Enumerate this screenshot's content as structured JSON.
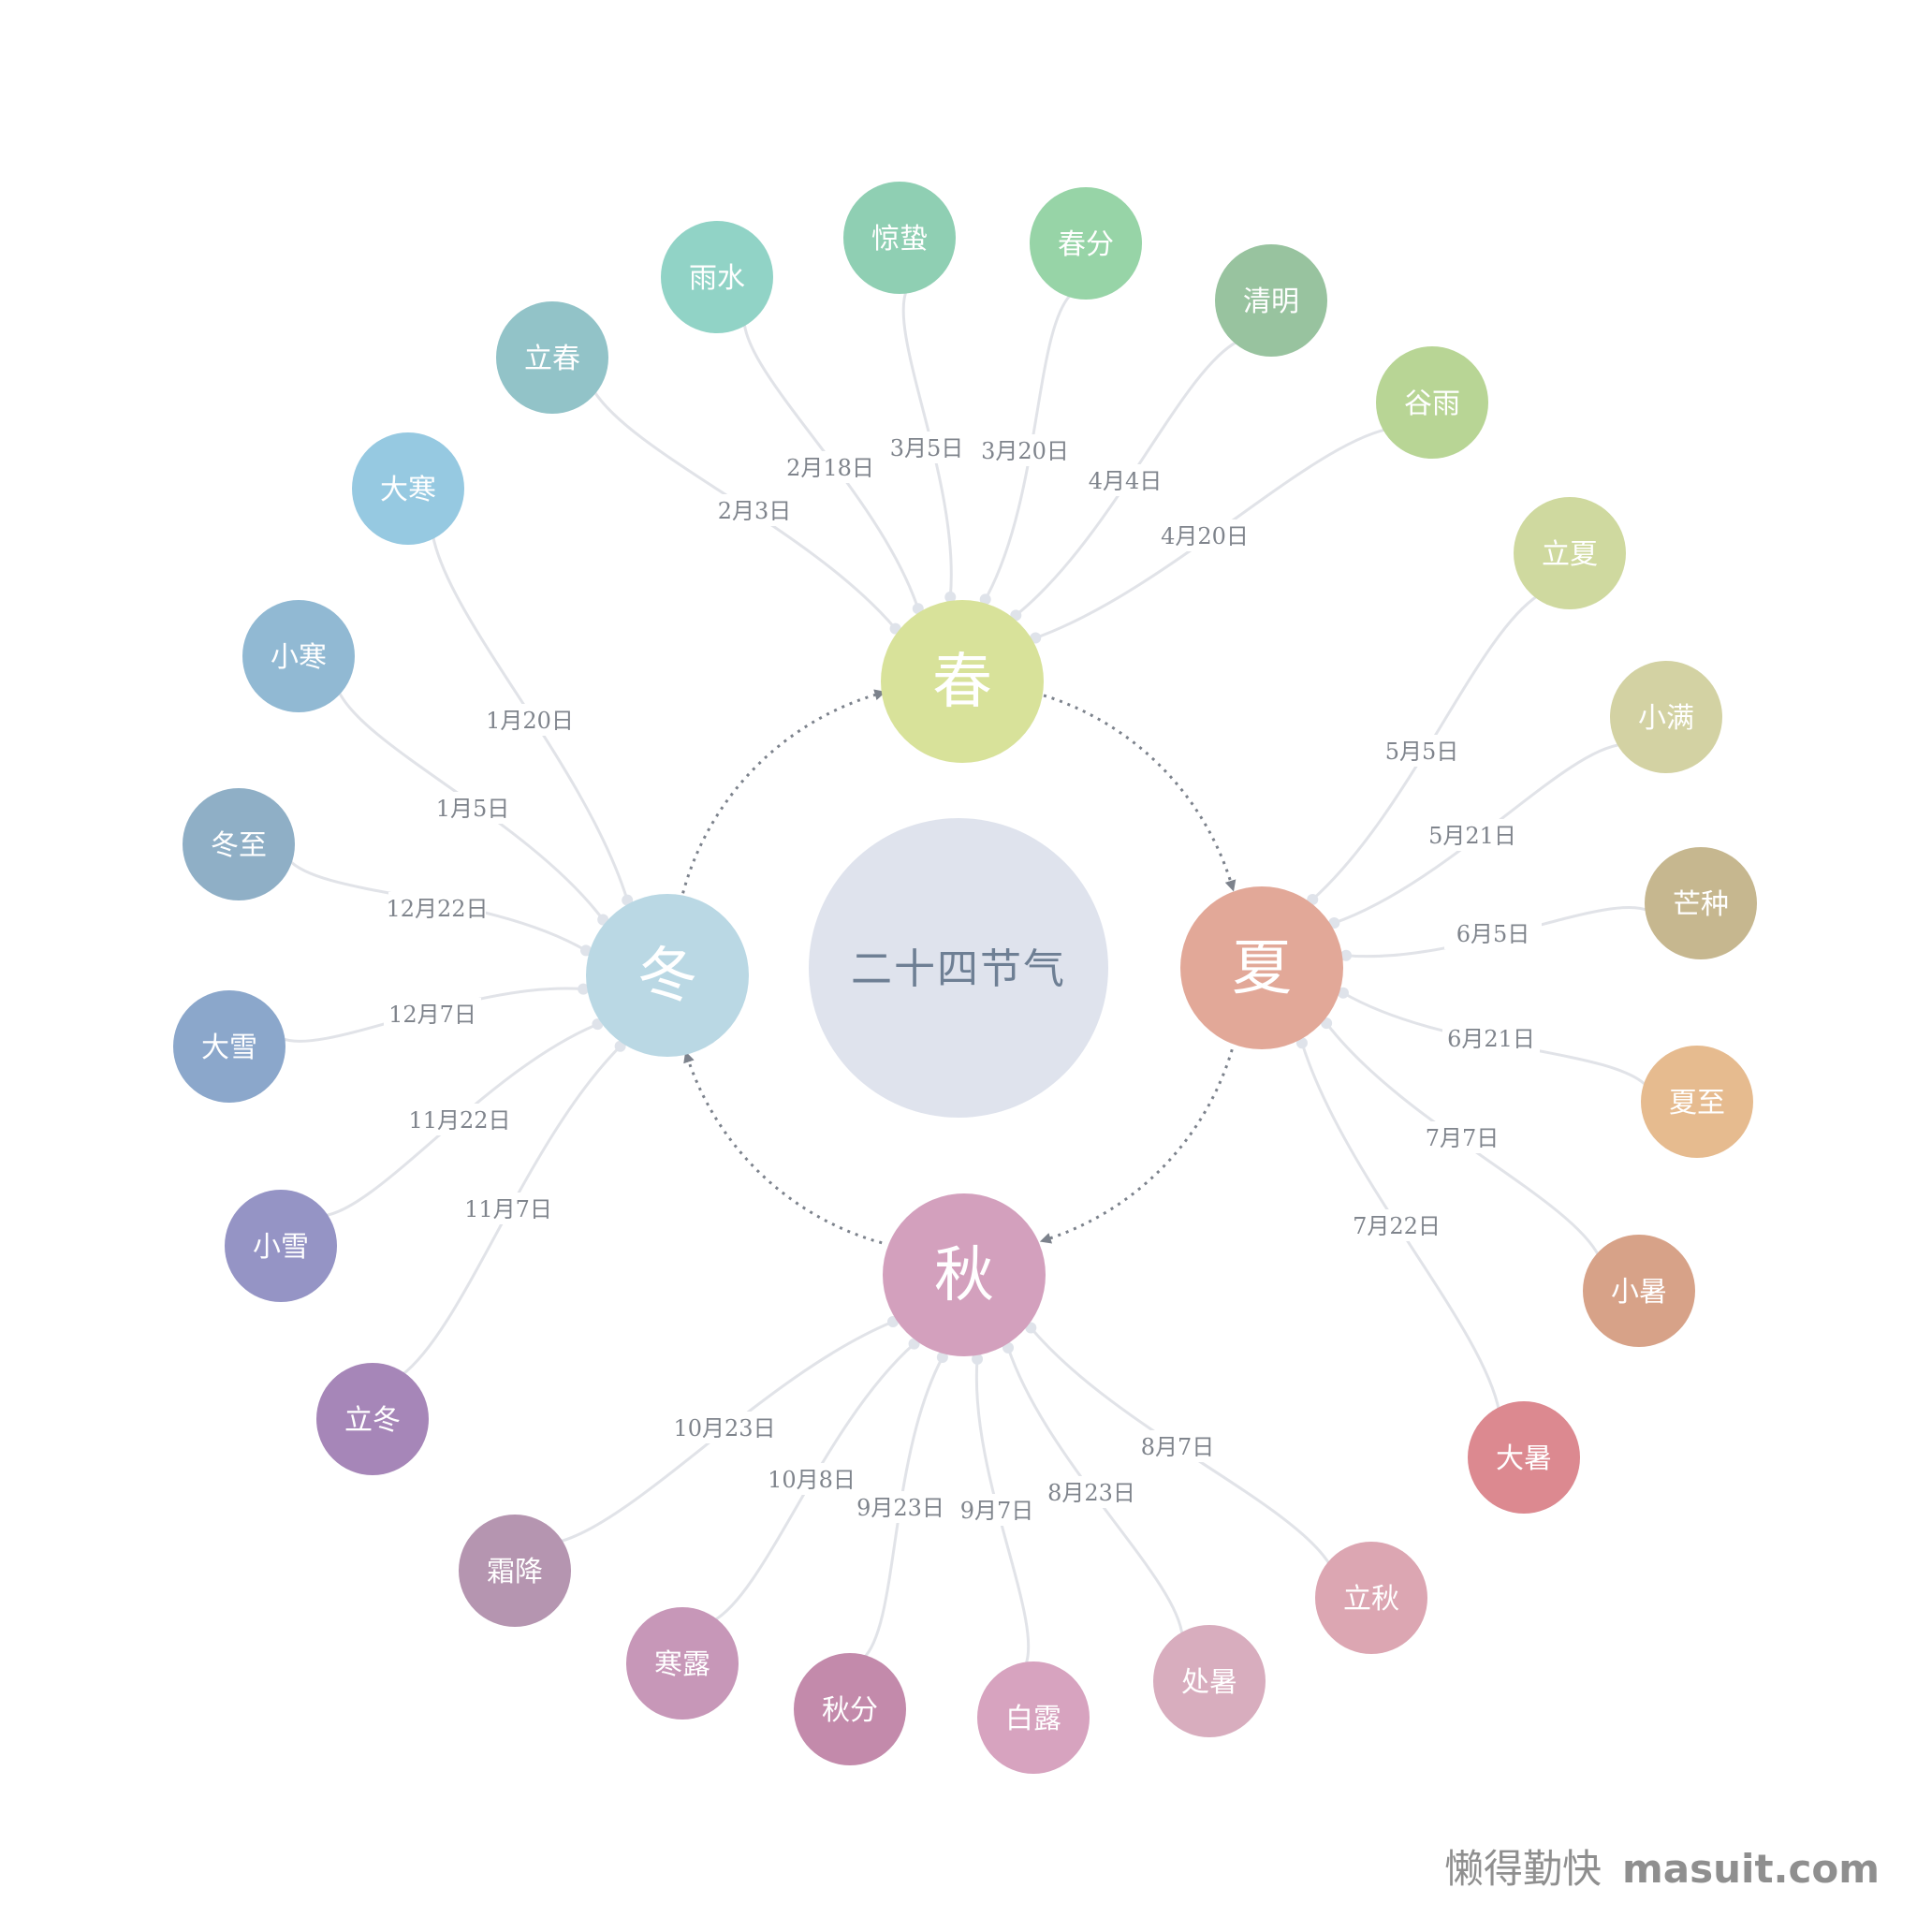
{
  "center": {
    "label": "二十四节气",
    "color": "#dfe3ed",
    "text_color": "#6e7f94"
  },
  "seasons": [
    {
      "id": "spring",
      "label": "春",
      "color": "#d8e29a"
    },
    {
      "id": "summer",
      "label": "夏",
      "color": "#e2a898"
    },
    {
      "id": "autumn",
      "label": "秋",
      "color": "#d3a0bd"
    },
    {
      "id": "winter",
      "label": "冬",
      "color": "#bad8e4"
    }
  ],
  "terms": [
    {
      "name": "立春",
      "date": "2月3日",
      "season": "spring",
      "color": "#92c3c8"
    },
    {
      "name": "雨水",
      "date": "2月18日",
      "season": "spring",
      "color": "#91d3c6"
    },
    {
      "name": "惊蛰",
      "date": "3月5日",
      "season": "spring",
      "color": "#8fcfb3"
    },
    {
      "name": "春分",
      "date": "3月20日",
      "season": "spring",
      "color": "#97d4a7"
    },
    {
      "name": "清明",
      "date": "4月4日",
      "season": "spring",
      "color": "#98c39f"
    },
    {
      "name": "谷雨",
      "date": "4月20日",
      "season": "spring",
      "color": "#b8d595"
    },
    {
      "name": "立夏",
      "date": "5月5日",
      "season": "summer",
      "color": "#cfd99f"
    },
    {
      "name": "小满",
      "date": "5月21日",
      "season": "summer",
      "color": "#d3d2a3"
    },
    {
      "name": "芒种",
      "date": "6月5日",
      "season": "summer",
      "color": "#c6b78f"
    },
    {
      "name": "夏至",
      "date": "6月21日",
      "season": "summer",
      "color": "#e6bb8f"
    },
    {
      "name": "小暑",
      "date": "7月7日",
      "season": "summer",
      "color": "#d7a288"
    },
    {
      "name": "大暑",
      "date": "7月22日",
      "season": "summer",
      "color": "#dc8990"
    },
    {
      "name": "立秋",
      "date": "8月7日",
      "season": "autumn",
      "color": "#dca6b2"
    },
    {
      "name": "处暑",
      "date": "8月23日",
      "season": "autumn",
      "color": "#d8adbe"
    },
    {
      "name": "白露",
      "date": "9月7日",
      "season": "autumn",
      "color": "#d7a3bf"
    },
    {
      "name": "秋分",
      "date": "9月23日",
      "season": "autumn",
      "color": "#c38aab"
    },
    {
      "name": "寒露",
      "date": "10月8日",
      "season": "autumn",
      "color": "#c797b8"
    },
    {
      "name": "霜降",
      "date": "10月23日",
      "season": "autumn",
      "color": "#b595b0"
    },
    {
      "name": "立冬",
      "date": "11月7日",
      "season": "winter",
      "color": "#a686b8"
    },
    {
      "name": "小雪",
      "date": "11月22日",
      "season": "winter",
      "color": "#9594c5"
    },
    {
      "name": "大雪",
      "date": "12月7日",
      "season": "winter",
      "color": "#8ba7cb"
    },
    {
      "name": "冬至",
      "date": "12月22日",
      "season": "winter",
      "color": "#8fafc6"
    },
    {
      "name": "小寒",
      "date": "1月5日",
      "season": "winter",
      "color": "#91b9d3"
    },
    {
      "name": "大寒",
      "date": "1月20日",
      "season": "winter",
      "color": "#96c9e1"
    }
  ],
  "line_color": "#e1e3e8",
  "cycle_arrow_color": "#7c828c",
  "watermark": {
    "cn": "懒得勤快",
    "en": "masuit.com"
  }
}
